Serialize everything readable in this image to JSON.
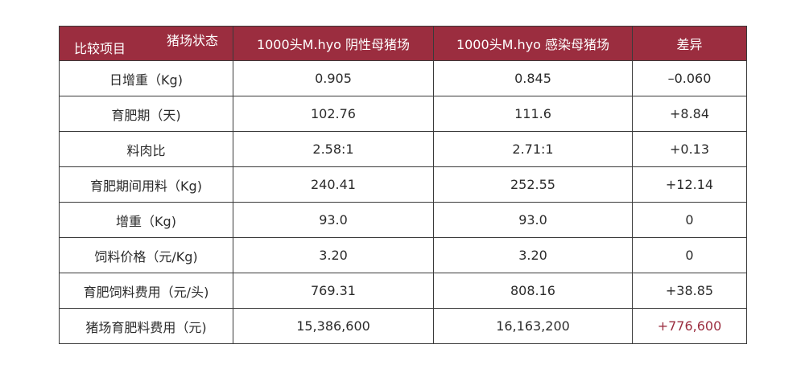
{
  "table": {
    "corner": {
      "top_label": "猪场状态",
      "bottom_label": "比较项目"
    },
    "headers": [
      "1000头M.hyo 阴性母猪场",
      "1000头M.hyo 感染母猪场",
      "差异"
    ],
    "rows": [
      {
        "item": "日增重（Kg)",
        "negative": "0.905",
        "positive": "0.845",
        "diff": "–0.060"
      },
      {
        "item": "育肥期（天)",
        "negative": "102.76",
        "positive": "111.6",
        "diff": "+8.84"
      },
      {
        "item": "料肉比",
        "negative": "2.58:1",
        "positive": "2.71:1",
        "diff": "+0.13"
      },
      {
        "item": "育肥期间用料（Kg)",
        "negative": "240.41",
        "positive": "252.55",
        "diff": "+12.14"
      },
      {
        "item": "增重（Kg)",
        "negative": "93.0",
        "positive": "93.0",
        "diff": "0"
      },
      {
        "item": "饲料价格（元/Kg)",
        "negative": "3.20",
        "positive": "3.20",
        "diff": "0"
      },
      {
        "item": "育肥饲料费用（元/头)",
        "negative": "769.31",
        "positive": "808.16",
        "diff": "+38.85"
      },
      {
        "item": "猪场育肥料费用（元)",
        "negative": "15,386,600",
        "positive": "16,163,200",
        "diff": "+776,600"
      }
    ],
    "colors": {
      "header_bg": "#9b2d3f",
      "header_text": "#ffffff",
      "highlight_text": "#9b2d3f",
      "border": "#3a3a3a"
    }
  }
}
